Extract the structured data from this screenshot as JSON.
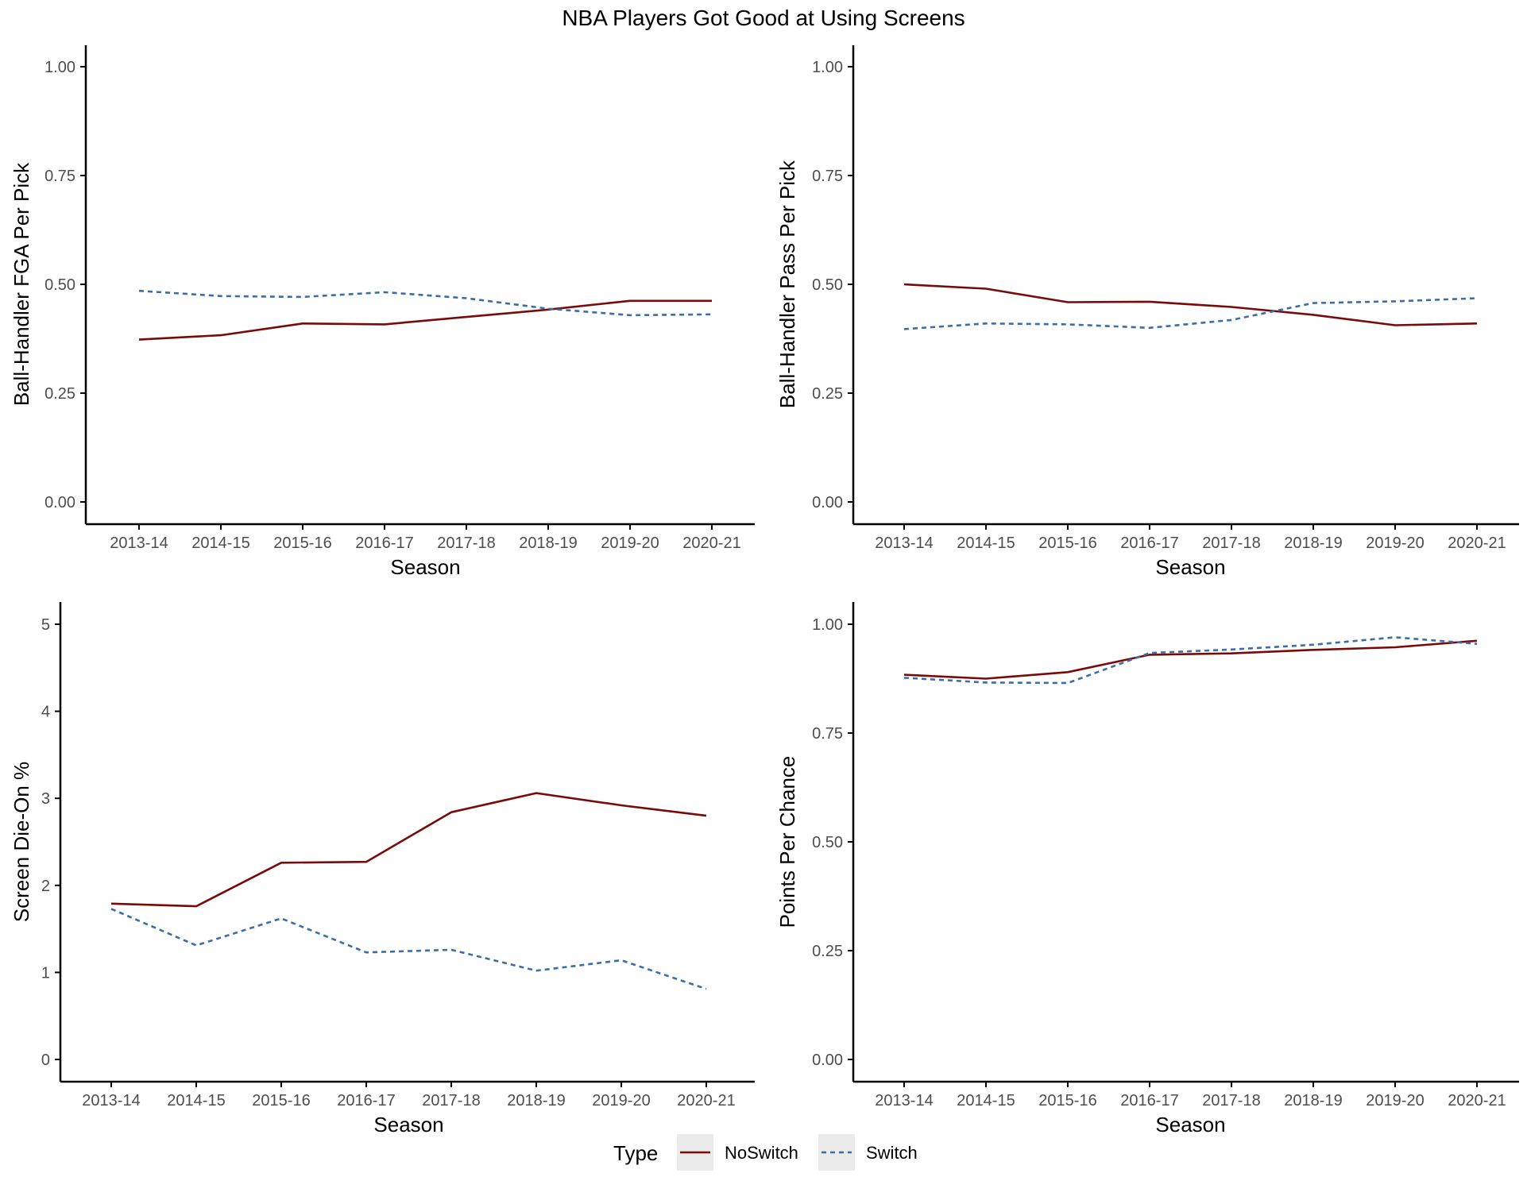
{
  "title": "NBA Players Got Good at Using Screens",
  "colors": {
    "NoSwitch": "#7a0a0a",
    "Switch": "#3a6ea5",
    "axis": "#000000",
    "tick_text": "#4d4d4d",
    "legend_key_bg": "#ebebeb"
  },
  "legend": {
    "title": "Type",
    "position": "bottom",
    "items": [
      {
        "label": "NoSwitch",
        "linetype": "solid"
      },
      {
        "label": "Switch",
        "linetype": "dashed"
      }
    ]
  },
  "chart_data": [
    {
      "type": "line",
      "xlabel": "Season",
      "ylabel": "Ball-Handler FGA Per Pick",
      "ylim": [
        0,
        1
      ],
      "yticks": [
        "0.00",
        "0.25",
        "0.50",
        "0.75",
        "1.00"
      ],
      "categories": [
        "2013-14",
        "2014-15",
        "2015-16",
        "2016-17",
        "2017-18",
        "2018-19",
        "2019-20",
        "2020-21"
      ],
      "series": [
        {
          "name": "NoSwitch",
          "values": [
            0.373,
            0.383,
            0.41,
            0.408,
            0.425,
            0.442,
            0.462,
            0.462
          ]
        },
        {
          "name": "Switch",
          "values": [
            0.485,
            0.473,
            0.471,
            0.482,
            0.468,
            0.444,
            0.429,
            0.431
          ]
        }
      ]
    },
    {
      "type": "line",
      "xlabel": "Season",
      "ylabel": "Ball-Handler Pass Per Pick",
      "ylim": [
        0,
        1
      ],
      "yticks": [
        "0.00",
        "0.25",
        "0.50",
        "0.75",
        "1.00"
      ],
      "categories": [
        "2013-14",
        "2014-15",
        "2015-16",
        "2016-17",
        "2017-18",
        "2018-19",
        "2019-20",
        "2020-21"
      ],
      "series": [
        {
          "name": "NoSwitch",
          "values": [
            0.5,
            0.49,
            0.459,
            0.46,
            0.448,
            0.43,
            0.406,
            0.41
          ]
        },
        {
          "name": "Switch",
          "values": [
            0.397,
            0.41,
            0.408,
            0.4,
            0.418,
            0.457,
            0.461,
            0.468
          ]
        }
      ]
    },
    {
      "type": "line",
      "xlabel": "Season",
      "ylabel": "Screen Die-On %",
      "ylim": [
        0,
        5
      ],
      "yticks": [
        "0",
        "1",
        "2",
        "3",
        "4",
        "5"
      ],
      "categories": [
        "2013-14",
        "2014-15",
        "2015-16",
        "2016-17",
        "2017-18",
        "2018-19",
        "2019-20",
        "2020-21"
      ],
      "series": [
        {
          "name": "NoSwitch",
          "values": [
            1.79,
            1.76,
            2.26,
            2.27,
            2.84,
            3.06,
            2.92,
            2.8
          ]
        },
        {
          "name": "Switch",
          "values": [
            1.73,
            1.31,
            1.62,
            1.23,
            1.26,
            1.02,
            1.14,
            0.81
          ]
        }
      ]
    },
    {
      "type": "line",
      "xlabel": "Season",
      "ylabel": "Points Per Chance",
      "ylim": [
        0,
        1
      ],
      "yticks": [
        "0.00",
        "0.25",
        "0.50",
        "0.75",
        "1.00"
      ],
      "categories": [
        "2013-14",
        "2014-15",
        "2015-16",
        "2016-17",
        "2017-18",
        "2018-19",
        "2019-20",
        "2020-21"
      ],
      "series": [
        {
          "name": "NoSwitch",
          "values": [
            0.884,
            0.875,
            0.89,
            0.93,
            0.933,
            0.941,
            0.947,
            0.962
          ]
        },
        {
          "name": "Switch",
          "values": [
            0.877,
            0.866,
            0.865,
            0.934,
            0.942,
            0.953,
            0.97,
            0.955
          ]
        }
      ]
    }
  ]
}
